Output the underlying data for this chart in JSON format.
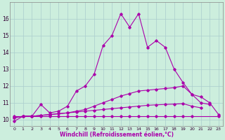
{
  "xlabel": "Windchill (Refroidissement éolien,°C)",
  "x": [
    0,
    1,
    2,
    3,
    4,
    5,
    6,
    7,
    8,
    9,
    10,
    11,
    12,
    13,
    14,
    15,
    16,
    17,
    18,
    19,
    20,
    21,
    22,
    23
  ],
  "line1": [
    9.9,
    10.2,
    10.2,
    10.9,
    10.4,
    10.5,
    10.8,
    11.7,
    12.0,
    12.7,
    14.4,
    15.0,
    16.3,
    15.5,
    16.3,
    14.3,
    14.7,
    14.3,
    13.0,
    12.2,
    11.5,
    11.0,
    10.9,
    null
  ],
  "line2": [
    10.1,
    10.2,
    10.2,
    10.25,
    10.3,
    10.35,
    10.4,
    10.5,
    10.6,
    10.8,
    11.0,
    11.2,
    11.4,
    11.55,
    11.7,
    11.75,
    11.8,
    11.85,
    11.9,
    12.0,
    11.5,
    11.35,
    11.0,
    10.3
  ],
  "line3": [
    10.1,
    10.2,
    10.2,
    10.25,
    10.3,
    10.35,
    10.4,
    10.45,
    10.5,
    10.55,
    10.6,
    10.65,
    10.7,
    10.75,
    10.8,
    10.85,
    10.88,
    10.9,
    10.92,
    10.95,
    10.8,
    10.7,
    null,
    null
  ],
  "line4": [
    10.2,
    10.2,
    10.2,
    10.2,
    10.2,
    10.2,
    10.2,
    10.2,
    10.2,
    10.2,
    10.2,
    10.2,
    10.2,
    10.2,
    10.2,
    10.2,
    10.2,
    10.2,
    10.2,
    10.2,
    10.2,
    null,
    null,
    10.2
  ],
  "line_color": "#aa00aa",
  "bg_color": "#cceedd",
  "grid_color": "#aacccc",
  "ylim": [
    9.6,
    17.0
  ],
  "yticks": [
    10,
    11,
    12,
    13,
    14,
    15,
    16
  ],
  "xticks": [
    0,
    1,
    2,
    3,
    4,
    5,
    6,
    7,
    8,
    9,
    10,
    11,
    12,
    13,
    14,
    15,
    16,
    17,
    18,
    19,
    20,
    21,
    22,
    23
  ]
}
